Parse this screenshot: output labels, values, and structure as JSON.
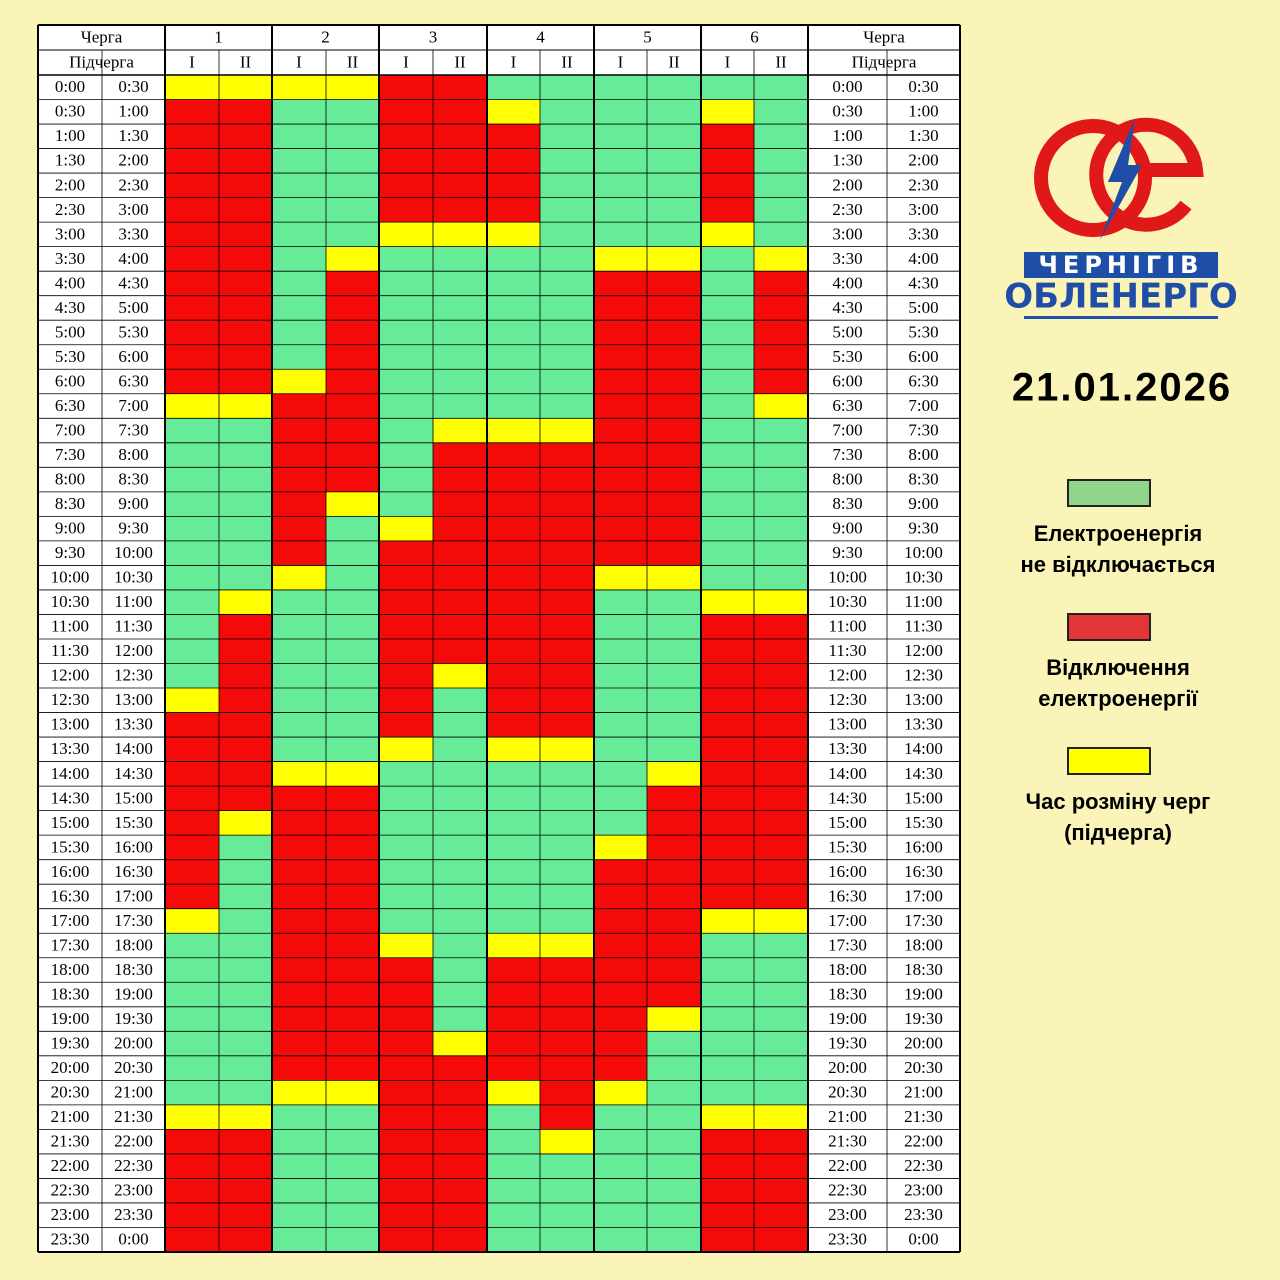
{
  "header": {
    "queue": "Черга",
    "subqueue": "Підчерга",
    "sub_labels": [
      "I",
      "II"
    ]
  },
  "times": [
    "0:00",
    "0:30",
    "1:00",
    "1:30",
    "2:00",
    "2:30",
    "3:00",
    "3:30",
    "4:00",
    "4:30",
    "5:00",
    "5:30",
    "6:00",
    "6:30",
    "7:00",
    "7:30",
    "8:00",
    "8:30",
    "9:00",
    "9:30",
    "10:00",
    "10:30",
    "11:00",
    "11:30",
    "12:00",
    "12:30",
    "13:00",
    "13:30",
    "14:00",
    "14:30",
    "15:00",
    "15:30",
    "16:00",
    "16:30",
    "17:00",
    "17:30",
    "18:00",
    "18:30",
    "19:00",
    "19:30",
    "20:00",
    "20:30",
    "21:00",
    "21:30",
    "22:00",
    "22:30",
    "23:00",
    "23:30",
    "0:00"
  ],
  "queues": [
    {
      "label": "1",
      "states": [
        "YRRRRRRRRRRRRYGGGGGGGGGGGYRRRRRRRRYGGGGGGGYRRRRR",
        "YRRRRRRRRRRRRYGGGGGGGYRRRRRRRRYGGGGGGGGGGGYRRRRR"
      ]
    },
    {
      "label": "2",
      "states": [
        "YGGGGGGGGGGGYRRRRRRRYGGGGGGGYRRRRRRRRRRRRYGGGGGG",
        "YGGGGGGYRRRRRRRRRYGGGGGGGGGGYRRRRRRRRRRRRYGGGGGG"
      ]
    },
    {
      "label": "3",
      "states": [
        "RRRRRRYGGGGGGGGGGGYRRRRRRRRYGGGGGGGYRRRRRRRRRRRR",
        "RRRRRRYGGGGGGGYRRRRRRRRRYGGGGGGGGGGGGGGYRRRRRRRR"
      ]
    },
    {
      "label": "4",
      "states": [
        "GYRRRRYGGGGGGGYRRRRRRRRRRRRYGGGGGGGYRRRRRYGGGGGG",
        "GGGGGGGGGGGGGGYRRRRRRRRRRRRYGGGGGGGYRRRRRRRYGGGG"
      ]
    },
    {
      "label": "5",
      "states": [
        "GGGGGGGYRRRRRRRRRRRRYGGGGGGGGGGYRRRRRRRRRYGGGGGG",
        "GGGGGGGYRRRRRRRRRRRRYGGGGGGGYRRRRRRRRRYGGGGGGGGG"
      ]
    },
    {
      "label": "6",
      "states": [
        "GYRRRRYGGGGGGGGGGGGGGYRRRRRRRRRRRRYGGGGGGGYRRRRR",
        "GGGGGGGYRRRRRYGGGGGGGYRRRRRRRRRRRRYGGGGGGGYRRRRR"
      ]
    }
  ],
  "logo": {
    "line1": "ЧЕРНІГІВ",
    "line2": "ОБЛЕНЕРГО"
  },
  "date": "21.01.2026",
  "legend": [
    {
      "code": "G",
      "color": "#66ec98",
      "box_color": "#8fd68a",
      "lines": [
        "Електроенергія",
        "не відключається"
      ]
    },
    {
      "code": "R",
      "color": "#f50a0a",
      "box_color": "#e23535",
      "lines": [
        "Відключення",
        "електроенергії"
      ]
    },
    {
      "code": "Y",
      "color": "#ffff00",
      "box_color": "#ffff00",
      "lines": [
        "Час розміну черг",
        "(підчерга)"
      ]
    }
  ]
}
